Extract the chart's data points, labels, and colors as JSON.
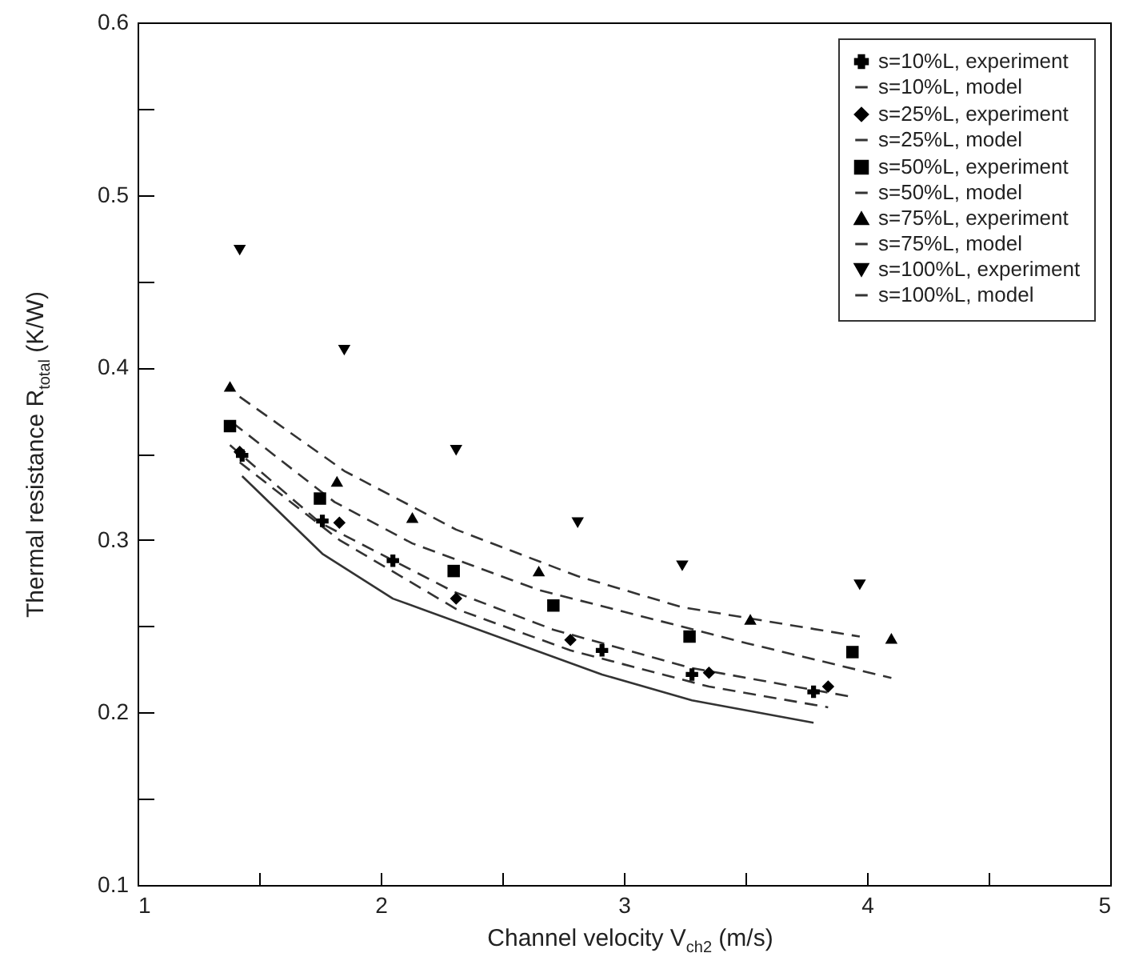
{
  "chart_data": {
    "type": "scatter",
    "xlabel": "Channel velocity V$_{ch2}$ (m/s)",
    "ylabel": "Thermal resistance R$_{total}$ (K/W)",
    "xlim": [
      1,
      5
    ],
    "xticks": [
      1,
      {
        "value": 1.5,
        "label": null
      },
      2,
      {
        "value": 2.5,
        "label": null
      },
      3,
      {
        "value": 3.5,
        "label": null
      },
      4,
      {
        "value": 4.5,
        "label": null
      },
      5
    ],
    "ylim": [
      0.1,
      0.6
    ],
    "yticks": [
      0.1,
      {
        "value": 0.15,
        "label": null
      },
      0.2,
      {
        "value": 0.25,
        "label": null
      },
      0.3,
      {
        "value": 0.35,
        "label": null
      },
      0.4,
      {
        "value": 0.45,
        "label": null
      },
      0.5,
      {
        "value": 0.55,
        "label": null
      },
      0.6
    ],
    "legend": "top right",
    "grid": false,
    "series": [
      {
        "name": "s=10%L, experiment",
        "type": "scatter",
        "marker": "cross",
        "color": "#000000",
        "x": [
          1.43,
          1.76,
          2.05,
          2.91,
          3.28,
          3.78
        ],
        "values": [
          0.349,
          0.311,
          0.288,
          0.236,
          0.222,
          0.212
        ]
      },
      {
        "name": "s=10%L, model",
        "type": "line",
        "line_style": "solid",
        "color": "#333333",
        "x": [
          1.43,
          1.76,
          2.05,
          2.91,
          3.28,
          3.78
        ],
        "values": [
          0.337,
          0.292,
          0.266,
          0.222,
          0.207,
          0.194
        ]
      },
      {
        "name": "s=25%L, experiment",
        "type": "scatter",
        "marker": "diamond",
        "color": "#000000",
        "x": [
          1.42,
          1.83,
          2.31,
          2.78,
          3.35,
          3.84
        ],
        "values": [
          0.351,
          0.31,
          0.266,
          0.242,
          0.223,
          0.215
        ]
      },
      {
        "name": "s=25%L, model",
        "type": "line",
        "line_style": "dashed",
        "color": "#333333",
        "x": [
          1.42,
          1.83,
          2.31,
          2.78,
          3.35,
          3.84
        ],
        "values": [
          0.345,
          0.3,
          0.26,
          0.236,
          0.215,
          0.203
        ]
      },
      {
        "name": "s=50%L, experiment",
        "type": "scatter",
        "marker": "square",
        "color": "#000000",
        "x": [
          1.38,
          1.75,
          2.3,
          2.71,
          3.27,
          3.94
        ],
        "values": [
          0.366,
          0.324,
          0.282,
          0.262,
          0.244,
          0.235
        ]
      },
      {
        "name": "s=50%L, model",
        "type": "line",
        "line_style": "dashed",
        "color": "#333333",
        "x": [
          1.38,
          1.75,
          2.3,
          2.71,
          3.27,
          3.94
        ],
        "values": [
          0.355,
          0.31,
          0.27,
          0.248,
          0.226,
          0.209
        ]
      },
      {
        "name": "s=75%L, experiment",
        "type": "scatter",
        "marker": "triangle",
        "color": "#000000",
        "x": [
          1.38,
          1.82,
          2.13,
          2.65,
          3.52,
          4.1
        ],
        "values": [
          0.389,
          0.334,
          0.313,
          0.282,
          0.254,
          0.243
        ]
      },
      {
        "name": "s=75%L, model",
        "type": "line",
        "line_style": "dashed",
        "color": "#333333",
        "x": [
          1.39,
          1.81,
          2.13,
          2.65,
          3.51,
          4.1
        ],
        "values": [
          0.368,
          0.322,
          0.298,
          0.271,
          0.24,
          0.22
        ]
      },
      {
        "name": "s=100%L, experiment",
        "type": "scatter",
        "marker": "triangle-down",
        "color": "#000000",
        "x": [
          1.42,
          1.85,
          2.31,
          2.81,
          3.24,
          3.97
        ],
        "values": [
          0.468,
          0.41,
          0.352,
          0.31,
          0.285,
          0.274
        ]
      },
      {
        "name": "s=100%L, model",
        "type": "line",
        "line_style": "dashed",
        "color": "#333333",
        "x": [
          1.42,
          1.85,
          2.31,
          2.81,
          3.24,
          3.97
        ],
        "values": [
          0.383,
          0.34,
          0.306,
          0.279,
          0.261,
          0.244
        ]
      }
    ]
  }
}
